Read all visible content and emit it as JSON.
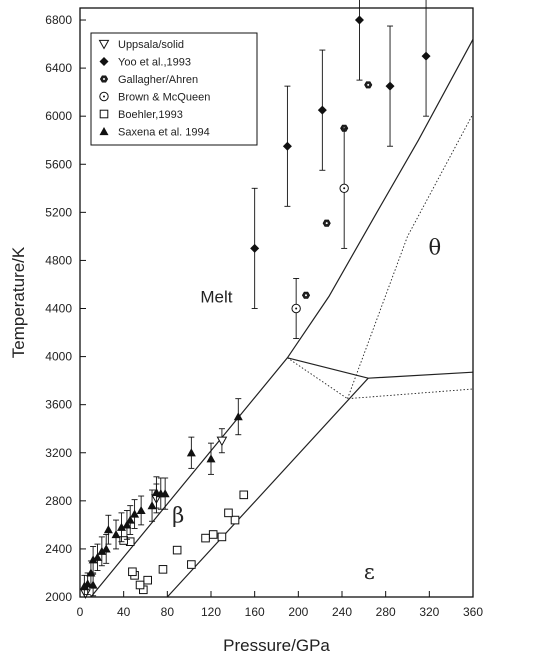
{
  "chart_data": {
    "type": "scatter",
    "xlabel": "Pressure/GPa",
    "ylabel": "Temperature/K",
    "xlim": [
      0,
      360
    ],
    "ylim": [
      2000,
      6900
    ],
    "xticks": [
      0,
      40,
      80,
      120,
      160,
      200,
      240,
      280,
      320,
      360
    ],
    "yticks": [
      2000,
      2400,
      2800,
      3200,
      3600,
      4000,
      4400,
      4800,
      5200,
      5600,
      6000,
      6400,
      6800
    ],
    "region_labels": [
      {
        "text": "Melt",
        "x": 125,
        "y": 4450
      },
      {
        "text": "θ",
        "x": 325,
        "y": 4850
      },
      {
        "text": "β",
        "x": 90,
        "y": 2620
      },
      {
        "text": "ε",
        "x": 265,
        "y": 2150
      }
    ],
    "legend": {
      "placement": "top-left",
      "entries": [
        {
          "label": "Uppsala/solid",
          "marker": "triangle-down-open"
        },
        {
          "label": "Yoo et al.,1993",
          "marker": "diamond-filled"
        },
        {
          "label": "Gallagher/Ahren",
          "marker": "hexagon-filled"
        },
        {
          "label": "Brown & McQueen",
          "marker": "circle-dot-open"
        },
        {
          "label": "Boehler,1993",
          "marker": "square-open"
        },
        {
          "label": "Saxena et al. 1994",
          "marker": "triangle-up-filled"
        }
      ]
    },
    "lines": [
      {
        "style": "solid",
        "points": [
          [
            10,
            2000
          ],
          [
            190,
            3990
          ],
          [
            228,
            4500
          ],
          [
            272,
            5200
          ],
          [
            310,
            5800
          ],
          [
            360,
            6640
          ]
        ]
      },
      {
        "style": "solid",
        "points": [
          [
            80,
            2000
          ],
          [
            264,
            3820
          ]
        ]
      },
      {
        "style": "solid",
        "points": [
          [
            190,
            3990
          ],
          [
            264,
            3820
          ],
          [
            360,
            3870
          ]
        ]
      },
      {
        "style": "dotted",
        "points": [
          [
            190,
            3990
          ],
          [
            245,
            3650
          ],
          [
            360,
            3730
          ]
        ]
      },
      {
        "style": "dotted",
        "points": [
          [
            245,
            3650
          ],
          [
            300,
            5000
          ],
          [
            360,
            6020
          ]
        ]
      }
    ],
    "series": [
      {
        "name": "Uppsala/solid",
        "marker": "triangle-down-open",
        "points": [
          {
            "x": 130,
            "y": 3300,
            "err": 100
          },
          {
            "x": 70,
            "y": 2820,
            "err": 120
          },
          {
            "x": 5,
            "y": 2030,
            "err": 0
          }
        ]
      },
      {
        "name": "Yoo et al.,1993",
        "marker": "diamond-filled",
        "points": [
          {
            "x": 160,
            "y": 4900,
            "err": 500
          },
          {
            "x": 190,
            "y": 5750,
            "err": 500
          },
          {
            "x": 222,
            "y": 6050,
            "err": 500
          },
          {
            "x": 256,
            "y": 6800,
            "err": 500
          },
          {
            "x": 284,
            "y": 6250,
            "err": 500
          },
          {
            "x": 317,
            "y": 6500,
            "err": 500
          }
        ]
      },
      {
        "name": "Gallagher/Ahren",
        "marker": "hexagon-filled",
        "points": [
          {
            "x": 207,
            "y": 4510
          },
          {
            "x": 226,
            "y": 5110
          },
          {
            "x": 242,
            "y": 5900
          },
          {
            "x": 264,
            "y": 6260
          }
        ]
      },
      {
        "name": "Brown & McQueen",
        "marker": "circle-dot-open",
        "points": [
          {
            "x": 198,
            "y": 4400,
            "err": 250
          },
          {
            "x": 242,
            "y": 5400,
            "err": 500
          }
        ]
      },
      {
        "name": "Boehler,1993",
        "marker": "square-open",
        "points": [
          {
            "x": 150,
            "y": 2850
          },
          {
            "x": 142,
            "y": 2640
          },
          {
            "x": 136,
            "y": 2700
          },
          {
            "x": 130,
            "y": 2500
          },
          {
            "x": 122,
            "y": 2520
          },
          {
            "x": 115,
            "y": 2490
          },
          {
            "x": 102,
            "y": 2270
          },
          {
            "x": 89,
            "y": 2390
          },
          {
            "x": 76,
            "y": 2230
          },
          {
            "x": 62,
            "y": 2140
          },
          {
            "x": 58,
            "y": 2060
          },
          {
            "x": 55,
            "y": 2100
          },
          {
            "x": 50,
            "y": 2180
          },
          {
            "x": 48,
            "y": 2210
          },
          {
            "x": 46,
            "y": 2460
          },
          {
            "x": 40,
            "y": 2470
          }
        ]
      },
      {
        "name": "Saxena et al. 1994",
        "marker": "triangle-up-filled",
        "points": [
          {
            "x": 145,
            "y": 3500,
            "err": 150
          },
          {
            "x": 120,
            "y": 3150,
            "err": 130
          },
          {
            "x": 102,
            "y": 3200,
            "err": 130
          },
          {
            "x": 78,
            "y": 2860,
            "err": 130
          },
          {
            "x": 74,
            "y": 2860,
            "err": 130
          },
          {
            "x": 70,
            "y": 2870,
            "err": 130
          },
          {
            "x": 66,
            "y": 2760,
            "err": 130
          },
          {
            "x": 56,
            "y": 2720,
            "err": 120
          },
          {
            "x": 50,
            "y": 2690,
            "err": 120
          },
          {
            "x": 46,
            "y": 2640,
            "err": 120
          },
          {
            "x": 43,
            "y": 2600,
            "err": 120
          },
          {
            "x": 38,
            "y": 2580,
            "err": 120
          },
          {
            "x": 33,
            "y": 2520,
            "err": 120
          },
          {
            "x": 26,
            "y": 2560,
            "err": 120
          },
          {
            "x": 24,
            "y": 2400,
            "err": 120
          },
          {
            "x": 20,
            "y": 2380,
            "err": 120
          },
          {
            "x": 16,
            "y": 2330,
            "err": 110
          },
          {
            "x": 12,
            "y": 2310,
            "err": 110
          },
          {
            "x": 10,
            "y": 2200,
            "err": 100
          },
          {
            "x": 7,
            "y": 2110,
            "err": 90
          },
          {
            "x": 4,
            "y": 2090,
            "err": 90
          },
          {
            "x": 12,
            "y": 2100,
            "err": 90
          }
        ]
      }
    ]
  }
}
